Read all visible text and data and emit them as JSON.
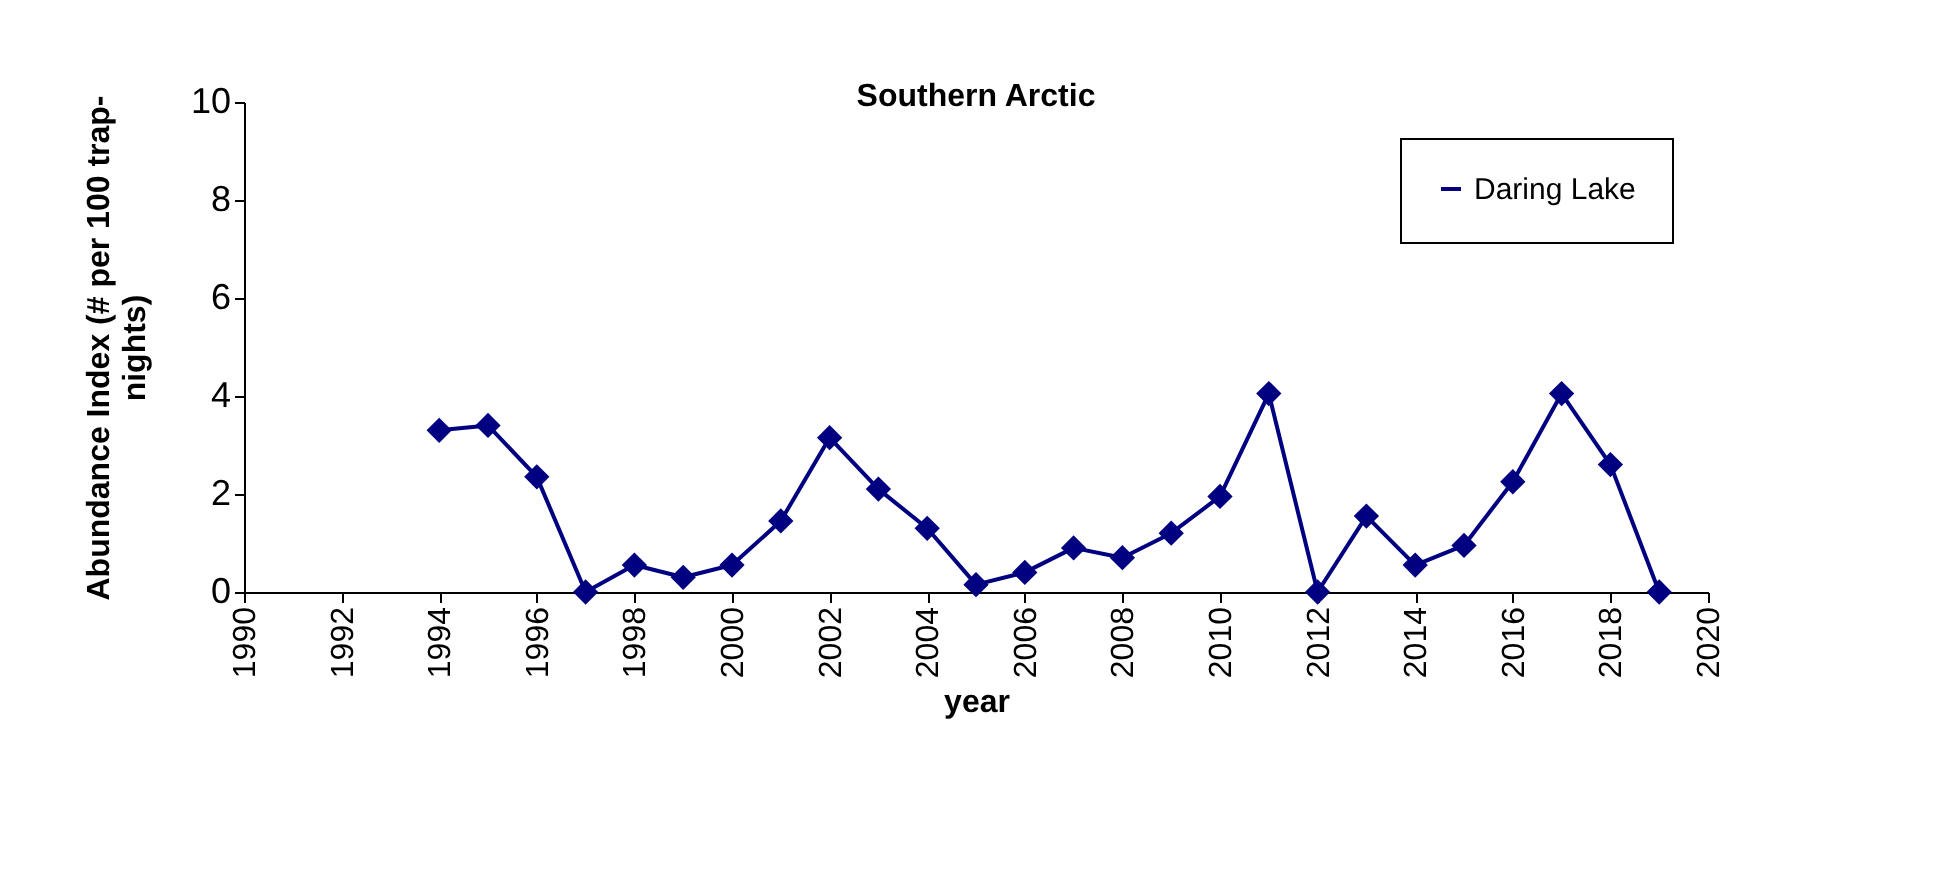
{
  "chart_data": {
    "type": "line",
    "title": "Southern Arctic",
    "xlabel": "year",
    "ylabel": "Abundance Index (# per 100 trap-nights)",
    "x": [
      1994,
      1995,
      1996,
      1997,
      1998,
      1999,
      2000,
      2001,
      2002,
      2003,
      2004,
      2005,
      2006,
      2007,
      2008,
      2009,
      2010,
      2011,
      2012,
      2013,
      2014,
      2015,
      2016,
      2017,
      2018,
      2019
    ],
    "series": [
      {
        "name": "Daring Lake",
        "color": "#000080",
        "values": [
          3.3,
          3.4,
          2.35,
          0,
          0.55,
          0.3,
          0.55,
          1.45,
          3.15,
          2.1,
          1.3,
          0.15,
          0.4,
          0.9,
          0.7,
          1.2,
          1.95,
          4.05,
          0,
          1.55,
          0.55,
          0.95,
          2.25,
          4.05,
          2.6,
          0
        ]
      }
    ],
    "xlim": [
      1990,
      2020
    ],
    "xticks": [
      1990,
      1992,
      1994,
      1996,
      1998,
      2000,
      2002,
      2004,
      2006,
      2008,
      2010,
      2012,
      2014,
      2016,
      2018,
      2020
    ],
    "ylim": [
      0,
      10
    ],
    "yticks": [
      0,
      2,
      4,
      6,
      8,
      10
    ],
    "grid": false,
    "legend": "top right",
    "marker": "diamond",
    "line_style": "solid"
  }
}
